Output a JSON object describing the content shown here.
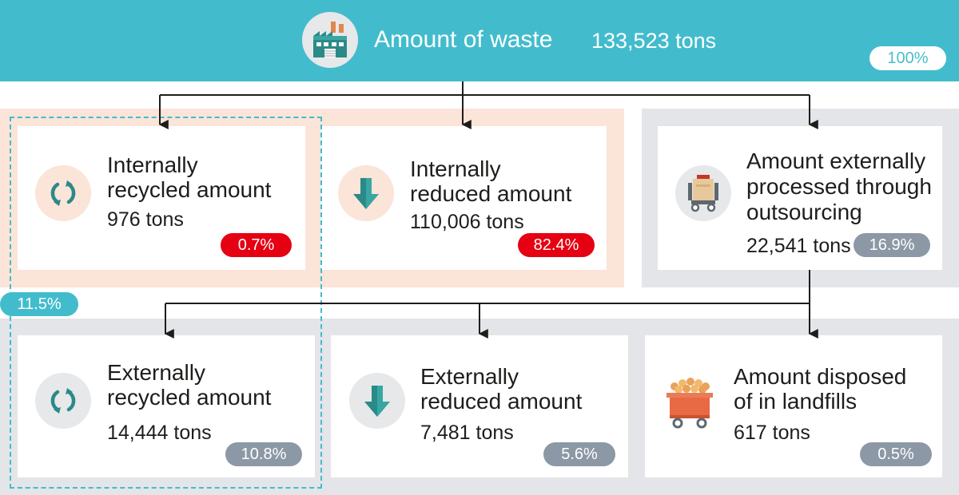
{
  "header": {
    "title": "Amount of waste",
    "total": "133,523 tons",
    "percent": "100%",
    "icon": "factory-icon"
  },
  "internal_group": {
    "combined_percent": "11.5%"
  },
  "cards": {
    "internally_recycled": {
      "title_line1": "Internally",
      "title_line2": "recycled amount",
      "value": "976 tons",
      "percent": "0.7%",
      "icon": "recycle-icon"
    },
    "internally_reduced": {
      "title_line1": "Internally",
      "title_line2": "reduced amount",
      "value": "110,006 tons",
      "percent": "82.4%",
      "icon": "down-arrow-icon"
    },
    "externally_processed": {
      "title_line1": "Amount externally",
      "title_line2": "processed through",
      "title_line3": "outsourcing",
      "value": "22,541 tons",
      "percent": "16.9%",
      "icon": "waste-cart-icon"
    },
    "externally_recycled": {
      "title_line1": "Externally",
      "title_line2": "recycled amount",
      "value": "14,444 tons",
      "percent": "10.8%",
      "icon": "recycle-icon"
    },
    "externally_reduced": {
      "title_line1": "Externally",
      "title_line2": "reduced amount",
      "value": "7,481 tons",
      "percent": "5.6%",
      "icon": "down-arrow-icon"
    },
    "landfill": {
      "title_line1": "Amount disposed",
      "title_line2": "of in landfills",
      "value": "617 tons",
      "percent": "0.5%",
      "icon": "landfill-cart-icon"
    }
  },
  "colors": {
    "header": "#42bccd",
    "internal_group": "#fbe4d8",
    "external_group": "#e4e5e8",
    "red_badge": "#e50012",
    "gray_badge": "#8c98a5",
    "teal_icon": "#2a8a88"
  }
}
